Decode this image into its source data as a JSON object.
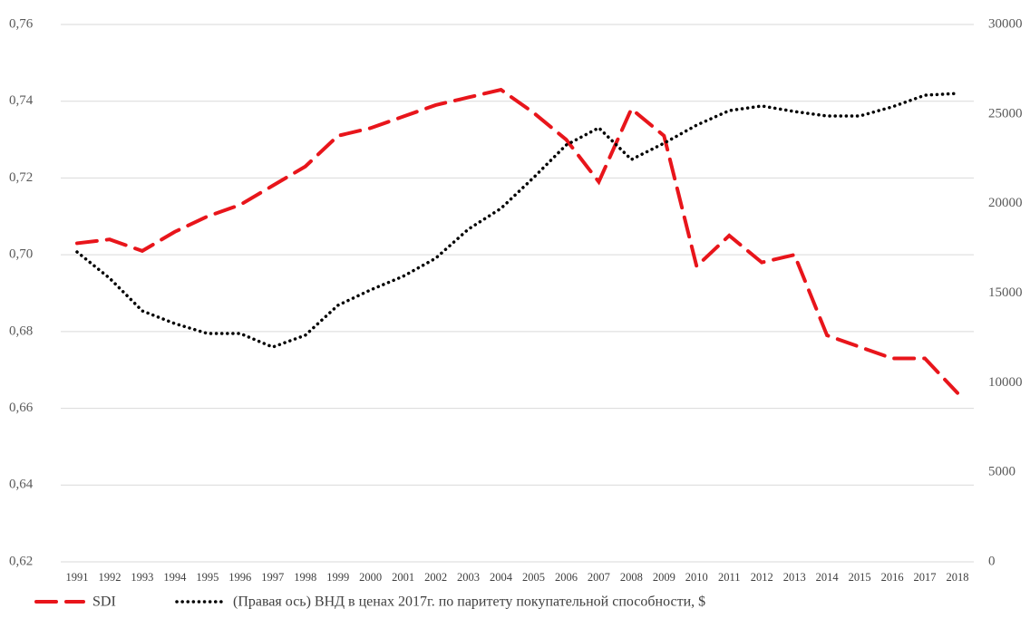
{
  "chart_data": {
    "type": "line",
    "categories": [
      "1991",
      "1992",
      "1993",
      "1994",
      "1995",
      "1996",
      "1997",
      "1998",
      "1999",
      "2000",
      "2001",
      "2002",
      "2003",
      "2004",
      "2005",
      "2006",
      "2007",
      "2008",
      "2009",
      "2010",
      "2011",
      "2012",
      "2013",
      "2014",
      "2015",
      "2016",
      "2017",
      "2018"
    ],
    "series": [
      {
        "name": "SDI",
        "color": "#e8151b",
        "dash": "dashed",
        "values": [
          0.703,
          0.704,
          0.701,
          0.706,
          0.71,
          0.713,
          0.718,
          0.723,
          0.731,
          0.733,
          0.736,
          0.739,
          0.741,
          0.743,
          0.737,
          0.73,
          0.719,
          0.738,
          0.731,
          0.697,
          0.705,
          0.698,
          0.7,
          0.679,
          0.676,
          0.673,
          0.673,
          0.664
        ]
      },
      {
        "name": "(Правая ось) ВНД в ценах 2017г. по паритету покупательной способности, $",
        "color": "#000000",
        "dash": "dotted",
        "axis": "y2",
        "values": [
          17300,
          15830,
          14010,
          13300,
          12750,
          12750,
          11990,
          12650,
          14320,
          15180,
          15940,
          16950,
          18570,
          19730,
          21450,
          23270,
          24230,
          22460,
          23370,
          24380,
          25190,
          25450,
          25140,
          24890,
          24890,
          25400,
          26050,
          26150
        ]
      }
    ],
    "ylim": [
      0.62,
      0.76
    ],
    "yticks": [
      {
        "value": 0.62,
        "label": "0,62"
      },
      {
        "value": 0.64,
        "label": "0,64"
      },
      {
        "value": 0.66,
        "label": "0,66"
      },
      {
        "value": 0.68,
        "label": "0,68"
      },
      {
        "value": 0.7,
        "label": "0,70"
      },
      {
        "value": 0.72,
        "label": "0,72"
      },
      {
        "value": 0.74,
        "label": "0,74"
      },
      {
        "value": 0.76,
        "label": "0,76"
      }
    ],
    "y2lim": [
      0,
      30000
    ],
    "y2ticks": [
      0,
      5000,
      10000,
      15000,
      20000,
      25000,
      30000
    ],
    "grid": true,
    "legend": "bottom"
  }
}
